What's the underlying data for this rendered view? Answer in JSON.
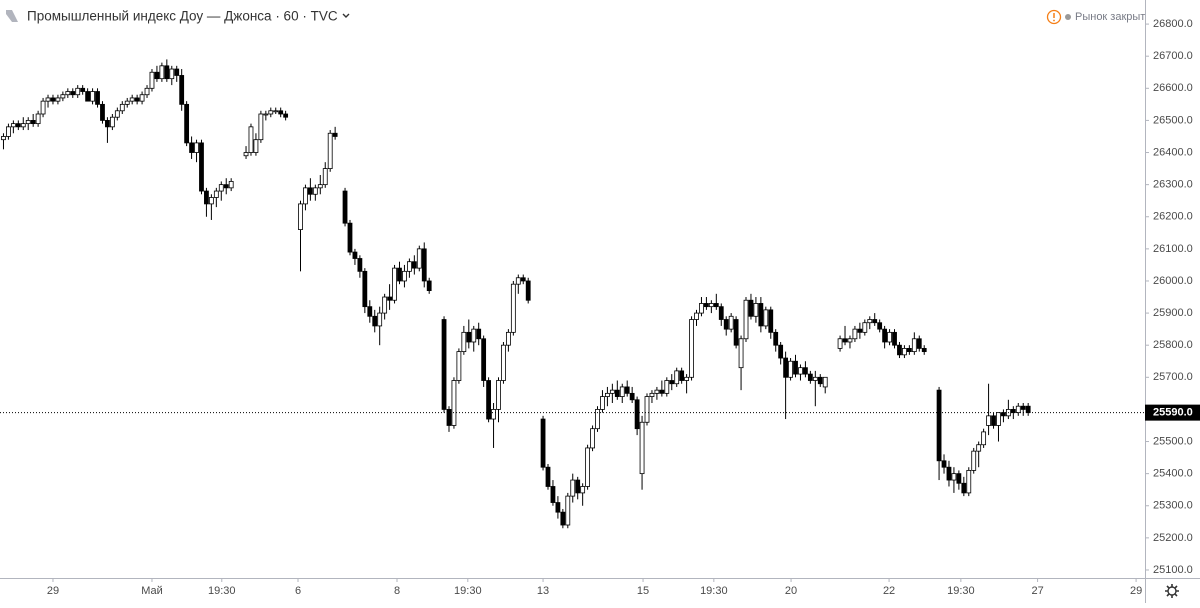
{
  "chart_data": {
    "type": "candlestick",
    "title": "Промышленный индекс Доу — Джонса · 60 · TVC",
    "status": "Рынок закрыт",
    "ylim": [
      25075,
      26875
    ],
    "xlim": [
      -0.6,
      230.7
    ],
    "yticks": [
      {
        "value": 25100,
        "label": "25100.0"
      },
      {
        "value": 25200,
        "label": "25200.0"
      },
      {
        "value": 25300,
        "label": "25300.0"
      },
      {
        "value": 25400,
        "label": "25400.0"
      },
      {
        "value": 25500,
        "label": "25500.0"
      },
      {
        "value": 25600,
        "label": "25600.0"
      },
      {
        "value": 25700,
        "label": "25700.0"
      },
      {
        "value": 25800,
        "label": "25800.0"
      },
      {
        "value": 25900,
        "label": "25900.0"
      },
      {
        "value": 26000,
        "label": "26000.0"
      },
      {
        "value": 26100,
        "label": "26100.0"
      },
      {
        "value": 26200,
        "label": "26200.0"
      },
      {
        "value": 26300,
        "label": "26300.0"
      },
      {
        "value": 26400,
        "label": "26400.0"
      },
      {
        "value": 26500,
        "label": "26500.0"
      },
      {
        "value": 26600,
        "label": "26600.0"
      },
      {
        "value": 26700,
        "label": "26700.0"
      },
      {
        "value": 26800,
        "label": "26800.0"
      }
    ],
    "xticks": [
      {
        "value": 10.1,
        "label": "29"
      },
      {
        "value": 30.1,
        "label": "Май"
      },
      {
        "value": 44.2,
        "label": "19:30"
      },
      {
        "value": 59.6,
        "label": "6"
      },
      {
        "value": 79.6,
        "label": "8"
      },
      {
        "value": 93.9,
        "label": "19:30"
      },
      {
        "value": 109.1,
        "label": "13"
      },
      {
        "value": 129.3,
        "label": "15"
      },
      {
        "value": 143.6,
        "label": "19:30"
      },
      {
        "value": 159.2,
        "label": "20"
      },
      {
        "value": 179,
        "label": "22"
      },
      {
        "value": 193.5,
        "label": "19:30"
      },
      {
        "value": 209,
        "label": "27"
      },
      {
        "value": 228.9,
        "label": "29"
      }
    ],
    "last_price": {
      "value": 25590,
      "label": "25590.0"
    },
    "up_color": "#ffffff",
    "down_color": "#000000",
    "values": [
      [
        26440,
        26460,
        26410,
        26450
      ],
      [
        26450,
        26490,
        26440,
        26480
      ],
      [
        26480,
        26500,
        26460,
        26490
      ],
      [
        26490,
        26500,
        26470,
        26480
      ],
      [
        26480,
        26510,
        26470,
        26490
      ],
      [
        26490,
        26510,
        26470,
        26500
      ],
      [
        26500,
        26520,
        26480,
        26490
      ],
      [
        26490,
        26530,
        26480,
        26520
      ],
      [
        26520,
        26570,
        26510,
        26560
      ],
      [
        26560,
        26580,
        26540,
        26570
      ],
      [
        26570,
        26580,
        26550,
        26560
      ],
      [
        26560,
        26580,
        26550,
        26570
      ],
      [
        26570,
        26590,
        26560,
        26580
      ],
      [
        26580,
        26600,
        26570,
        26590
      ],
      [
        26590,
        26600,
        26570,
        26580
      ],
      [
        26580,
        26610,
        26570,
        26600
      ],
      [
        26600,
        26610,
        26580,
        26590
      ],
      [
        26590,
        26600,
        26560,
        26560
      ],
      [
        26560,
        26600,
        26550,
        26590
      ],
      [
        26590,
        26600,
        26540,
        26550
      ],
      [
        26550,
        26560,
        26490,
        26500
      ],
      [
        26500,
        26510,
        26430,
        26480
      ],
      [
        26480,
        26520,
        26470,
        26510
      ],
      [
        26510,
        26540,
        26500,
        26530
      ],
      [
        26530,
        26560,
        26520,
        26550
      ],
      [
        26550,
        26570,
        26540,
        26560
      ],
      [
        26560,
        26580,
        26550,
        26570
      ],
      [
        26570,
        26580,
        26550,
        26560
      ],
      [
        26560,
        26590,
        26550,
        26580
      ],
      [
        26580,
        26610,
        26570,
        26600
      ],
      [
        26600,
        26660,
        26590,
        26650
      ],
      [
        26650,
        26670,
        26620,
        26630
      ],
      [
        26630,
        26680,
        26620,
        26670
      ],
      [
        26670,
        26690,
        26620,
        26630
      ],
      [
        26630,
        26670,
        26610,
        26660
      ],
      [
        26660,
        26670,
        26620,
        26640
      ],
      [
        26640,
        26660,
        26530,
        26550
      ],
      [
        26550,
        26560,
        26420,
        26430
      ],
      [
        26430,
        26450,
        26380,
        26400
      ],
      [
        26400,
        26440,
        26370,
        26430
      ],
      [
        26430,
        26440,
        26270,
        26280
      ],
      [
        26280,
        26290,
        26200,
        26240
      ],
      [
        26240,
        26270,
        26190,
        26260
      ],
      [
        26260,
        26290,
        26230,
        26280
      ],
      [
        26280,
        26310,
        26250,
        26300
      ],
      [
        26300,
        26320,
        26270,
        26290
      ],
      [
        26290,
        26320,
        26280,
        26310
      ],
      null,
      null,
      [
        26390,
        26420,
        26380,
        26400
      ],
      [
        26400,
        26490,
        26390,
        26480
      ],
      [
        26400,
        26460,
        26390,
        26440
      ],
      [
        26440,
        26530,
        26430,
        26520
      ],
      [
        26520,
        26530,
        26500,
        26520
      ],
      [
        26520,
        26540,
        26510,
        26530
      ],
      [
        26530,
        26540,
        26520,
        26530
      ],
      [
        26530,
        26540,
        26510,
        26520
      ],
      [
        26520,
        26530,
        26500,
        26510
      ],
      null,
      null,
      [
        26160,
        26250,
        26030,
        26240
      ],
      [
        26240,
        26300,
        26220,
        26290
      ],
      [
        26290,
        26320,
        26250,
        26270
      ],
      [
        26270,
        26300,
        26250,
        26290
      ],
      [
        26290,
        26330,
        26270,
        26300
      ],
      [
        26300,
        26370,
        26290,
        26350
      ],
      [
        26350,
        26470,
        26340,
        26460
      ],
      [
        26460,
        26480,
        26440,
        26450
      ],
      null,
      [
        26280,
        26290,
        26170,
        26180
      ],
      [
        26180,
        26190,
        26080,
        26090
      ],
      [
        26090,
        26100,
        26050,
        26070
      ],
      [
        26070,
        26080,
        26010,
        26030
      ],
      [
        26030,
        26040,
        25900,
        25920
      ],
      [
        25920,
        25940,
        25870,
        25890
      ],
      [
        25890,
        25910,
        25840,
        25860
      ],
      [
        25860,
        25920,
        25800,
        25900
      ],
      [
        25900,
        25960,
        25880,
        25950
      ],
      [
        25950,
        25990,
        25910,
        25940
      ],
      [
        25940,
        26050,
        25930,
        26040
      ],
      [
        26040,
        26060,
        25990,
        26000
      ],
      [
        26000,
        26050,
        25980,
        26030
      ],
      [
        26030,
        26070,
        26010,
        26060
      ],
      [
        26060,
        26080,
        26020,
        26040
      ],
      [
        26040,
        26110,
        26030,
        26100
      ],
      [
        26100,
        26120,
        25980,
        26000
      ],
      [
        26000,
        26010,
        25960,
        25970
      ],
      null,
      null,
      [
        25880,
        25890,
        25590,
        25600
      ],
      [
        25600,
        25610,
        25530,
        25550
      ],
      [
        25550,
        25700,
        25540,
        25690
      ],
      [
        25690,
        25790,
        25680,
        25780
      ],
      [
        25780,
        25860,
        25770,
        25840
      ],
      [
        25840,
        25880,
        25790,
        25810
      ],
      [
        25810,
        25860,
        25780,
        25850
      ],
      [
        25850,
        25870,
        25800,
        25820
      ],
      [
        25820,
        25830,
        25670,
        25690
      ],
      [
        25690,
        25700,
        25560,
        25570
      ],
      [
        25570,
        25620,
        25480,
        25600
      ],
      [
        25600,
        25700,
        25560,
        25690
      ],
      [
        25690,
        25810,
        25680,
        25800
      ],
      [
        25800,
        25850,
        25780,
        25840
      ],
      [
        25840,
        26000,
        25830,
        25990
      ],
      [
        25990,
        26020,
        25960,
        26010
      ],
      [
        26010,
        26020,
        25990,
        26000
      ],
      [
        26000,
        26010,
        25930,
        25940
      ],
      null,
      null,
      [
        25570,
        25580,
        25410,
        25420
      ],
      [
        25420,
        25430,
        25350,
        25360
      ],
      [
        25360,
        25380,
        25300,
        25310
      ],
      [
        25310,
        25330,
        25260,
        25280
      ],
      [
        25280,
        25290,
        25230,
        25240
      ],
      [
        25240,
        25340,
        25230,
        25330
      ],
      [
        25330,
        25400,
        25310,
        25380
      ],
      [
        25380,
        25390,
        25320,
        25340
      ],
      [
        25340,
        25370,
        25300,
        25360
      ],
      [
        25360,
        25490,
        25350,
        25480
      ],
      [
        25480,
        25550,
        25470,
        25540
      ],
      [
        25540,
        25610,
        25530,
        25600
      ],
      [
        25600,
        25660,
        25590,
        25640
      ],
      [
        25640,
        25670,
        25610,
        25650
      ],
      [
        25650,
        25680,
        25620,
        25660
      ],
      [
        25660,
        25690,
        25630,
        25640
      ],
      [
        25640,
        25680,
        25620,
        25670
      ],
      [
        25670,
        25690,
        25640,
        25650
      ],
      [
        25650,
        25670,
        25620,
        25630
      ],
      [
        25630,
        25640,
        25520,
        25540
      ],
      [
        25400,
        25580,
        25350,
        25560
      ],
      [
        25560,
        25650,
        25550,
        25640
      ],
      [
        25640,
        25660,
        25620,
        25650
      ],
      [
        25650,
        25670,
        25630,
        25660
      ],
      [
        25660,
        25690,
        25640,
        25650
      ],
      [
        25650,
        25700,
        25640,
        25690
      ],
      [
        25690,
        25710,
        25660,
        25680
      ],
      [
        25680,
        25730,
        25670,
        25720
      ],
      [
        25720,
        25730,
        25680,
        25690
      ],
      [
        25690,
        25710,
        25650,
        25700
      ],
      [
        25700,
        25890,
        25690,
        25880
      ],
      [
        25880,
        25910,
        25860,
        25900
      ],
      [
        25900,
        25950,
        25890,
        25930
      ],
      [
        25930,
        25950,
        25910,
        25920
      ],
      [
        25920,
        25940,
        25900,
        25930
      ],
      [
        25930,
        25960,
        25910,
        25920
      ],
      [
        25920,
        25930,
        25860,
        25880
      ],
      [
        25880,
        25890,
        25830,
        25850
      ],
      [
        25850,
        25900,
        25840,
        25890
      ],
      [
        25880,
        25890,
        25790,
        25800
      ],
      [
        25730,
        25830,
        25660,
        25820
      ],
      [
        25820,
        25950,
        25810,
        25940
      ],
      [
        25940,
        25960,
        25880,
        25890
      ],
      [
        25890,
        25950,
        25870,
        25930
      ],
      [
        25930,
        25950,
        25840,
        25860
      ],
      [
        25860,
        25920,
        25850,
        25910
      ],
      [
        25910,
        25920,
        25820,
        25840
      ],
      [
        25840,
        25850,
        25780,
        25800
      ],
      [
        25800,
        25810,
        25740,
        25760
      ],
      [
        25760,
        25780,
        25570,
        25700
      ],
      [
        25700,
        25760,
        25690,
        25750
      ],
      [
        25750,
        25770,
        25700,
        25710
      ],
      [
        25710,
        25740,
        25690,
        25730
      ],
      [
        25730,
        25750,
        25700,
        25710
      ],
      [
        25710,
        25720,
        25680,
        25690
      ],
      [
        25690,
        25720,
        25610,
        25700
      ],
      [
        25700,
        25710,
        25670,
        25680
      ],
      [
        25670,
        25700,
        25650,
        25700
      ],
      null,
      null,
      [
        25790,
        25830,
        25780,
        25820
      ],
      [
        25820,
        25860,
        25800,
        25810
      ],
      [
        25810,
        25830,
        25790,
        25820
      ],
      [
        25820,
        25860,
        25810,
        25850
      ],
      [
        25850,
        25870,
        25820,
        25840
      ],
      [
        25840,
        25880,
        25830,
        25870
      ],
      [
        25870,
        25890,
        25850,
        25880
      ],
      [
        25880,
        25900,
        25860,
        25870
      ],
      [
        25870,
        25880,
        25840,
        25850
      ],
      [
        25850,
        25860,
        25790,
        25810
      ],
      [
        25810,
        25850,
        25800,
        25840
      ],
      [
        25840,
        25850,
        25790,
        25800
      ],
      [
        25800,
        25810,
        25760,
        25770
      ],
      [
        25770,
        25800,
        25760,
        25790
      ],
      [
        25790,
        25800,
        25770,
        25780
      ],
      [
        25780,
        25840,
        25770,
        25820
      ],
      [
        25820,
        25830,
        25780,
        25790
      ],
      [
        25790,
        25800,
        25770,
        25780
      ],
      null,
      null,
      [
        25660,
        25670,
        25380,
        25440
      ],
      [
        25440,
        25460,
        25400,
        25420
      ],
      [
        25420,
        25440,
        25360,
        25380
      ],
      [
        25380,
        25420,
        25340,
        25400
      ],
      [
        25400,
        25410,
        25350,
        25370
      ],
      [
        25370,
        25390,
        25330,
        25340
      ],
      [
        25340,
        25420,
        25330,
        25410
      ],
      [
        25410,
        25480,
        25400,
        25470
      ],
      [
        25470,
        25500,
        25420,
        25490
      ],
      [
        25490,
        25540,
        25480,
        25530
      ],
      [
        25550,
        25680,
        25520,
        25580
      ],
      [
        25580,
        25590,
        25540,
        25550
      ],
      [
        25550,
        25590,
        25500,
        25590
      ],
      [
        25590,
        25600,
        25560,
        25580
      ],
      [
        25580,
        25630,
        25570,
        25600
      ],
      [
        25600,
        25610,
        25570,
        25590
      ],
      [
        25590,
        25620,
        25580,
        25610
      ],
      [
        25610,
        25620,
        25580,
        25600
      ],
      [
        25610,
        25620,
        25580,
        25590
      ]
    ]
  }
}
